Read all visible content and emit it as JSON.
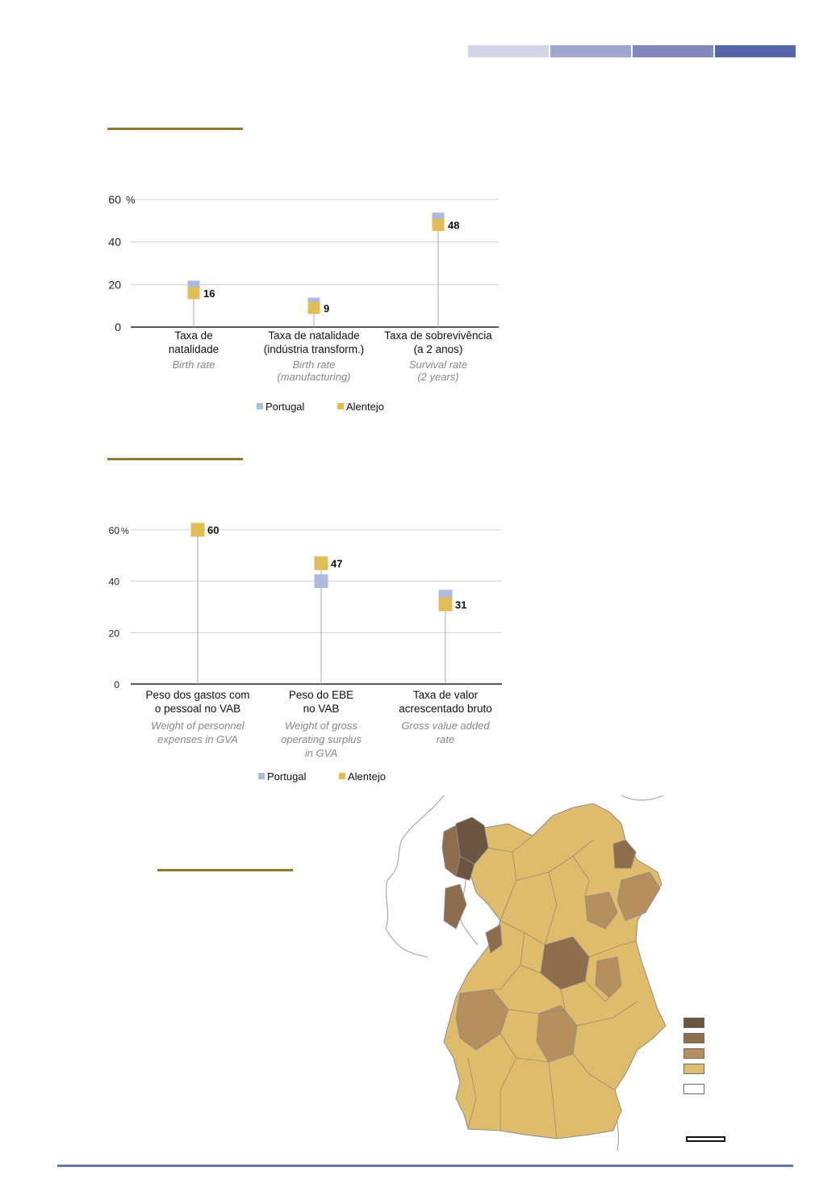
{
  "header": {
    "bar_colors": [
      "#d4d6e8",
      "#a0a7cf",
      "#8088be",
      "#5666aa"
    ]
  },
  "colors": {
    "portugal": "#b0bade",
    "alentejo": "#e1bd55",
    "stem": "#a8a8a8",
    "grid": "#d0d0d0",
    "gold_rule": "#8e7a2c",
    "footer_rule": "#6975b0"
  },
  "legend": {
    "portugal": "Portugal",
    "alentejo": "Alentejo"
  },
  "chart_data": [
    {
      "type": "scatter",
      "y_unit": "%",
      "yticks": [
        "0",
        "20",
        "40",
        "60"
      ],
      "ylim": [
        0,
        60
      ],
      "grid": true,
      "legend_position": "bottom",
      "categories": [
        {
          "pt": "Taxa de",
          "pt2": "natalidade",
          "en": "Birth rate",
          "en2": "",
          "en3": ""
        },
        {
          "pt": "Taxa de natalidade",
          "pt2": "(indústria transform.)",
          "en": "Birth rate",
          "en2": "(manufacturing)",
          "en3": ""
        },
        {
          "pt": "Taxa de sobrevivência",
          "pt2": "(a 2 anos)",
          "en": "Survival rate",
          "en2": "(2 years)",
          "en3": ""
        }
      ],
      "series": [
        {
          "name": "Portugal",
          "values": [
            19,
            11,
            51
          ]
        },
        {
          "name": "Alentejo",
          "values": [
            16,
            9,
            48
          ]
        }
      ],
      "data_labels": [
        "16",
        "9",
        "48"
      ]
    },
    {
      "type": "scatter",
      "y_unit": "%",
      "yticks": [
        "0",
        "20",
        "40",
        "60"
      ],
      "ylim": [
        0,
        60
      ],
      "grid": true,
      "legend_position": "bottom",
      "categories": [
        {
          "pt": "Peso dos gastos com",
          "pt2": "o pessoal no VAB",
          "en": "Weight of personnel",
          "en2": "expenses in GVA",
          "en3": ""
        },
        {
          "pt": "Peso do EBE",
          "pt2": "no VAB",
          "en": "Weight of gross",
          "en2": "operating surplus",
          "en3": "in GVA"
        },
        {
          "pt": "Taxa de valor",
          "pt2": "acrescentado bruto",
          "en": "Gross value added",
          "en2": "rate",
          "en3": ""
        }
      ],
      "series": [
        {
          "name": "Portugal",
          "values": [
            60,
            40,
            34
          ]
        },
        {
          "name": "Alentejo",
          "values": [
            60,
            47,
            31
          ]
        }
      ],
      "data_labels": [
        "60",
        "47",
        "31"
      ]
    }
  ],
  "map": {
    "class_colors": [
      "#6b5540",
      "#8e6d4d",
      "#b58f5d",
      "#dfbb6c",
      "#ffffff"
    ],
    "fill_base": "#dfbb6c",
    "outline": "#8c8c8c"
  }
}
